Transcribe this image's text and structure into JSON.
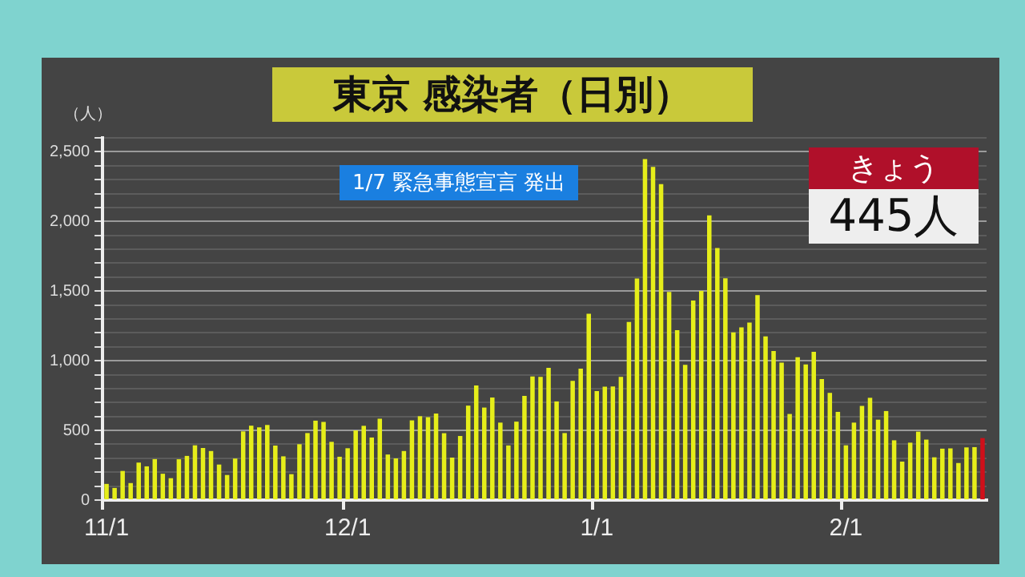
{
  "chart_data": {
    "type": "bar",
    "title": "東京 感染者（日別）",
    "ylabel": "（人）",
    "categories": [
      "11/1",
      null,
      null,
      null,
      null,
      null,
      null,
      null,
      null,
      null,
      null,
      null,
      null,
      null,
      null,
      null,
      null,
      null,
      null,
      null,
      null,
      null,
      null,
      null,
      null,
      null,
      null,
      null,
      null,
      null,
      "12/1",
      null,
      null,
      null,
      null,
      null,
      null,
      null,
      null,
      null,
      null,
      null,
      null,
      null,
      null,
      null,
      null,
      null,
      null,
      null,
      null,
      null,
      null,
      null,
      null,
      null,
      null,
      null,
      null,
      null,
      null,
      "1/1",
      null,
      null,
      null,
      null,
      null,
      null,
      null,
      null,
      null,
      null,
      null,
      null,
      null,
      null,
      null,
      null,
      null,
      null,
      null,
      null,
      null,
      null,
      null,
      null,
      null,
      null,
      null,
      null,
      null,
      null,
      "2/1",
      null,
      null,
      null,
      null,
      null,
      null,
      null,
      null,
      null,
      null,
      null,
      null,
      null,
      null,
      null,
      null,
      null
    ],
    "values": [
      116,
      87,
      209,
      122,
      269,
      242,
      294,
      189,
      157,
      293,
      317,
      393,
      374,
      352,
      255,
      180,
      298,
      493,
      534,
      522,
      539,
      391,
      314,
      186,
      401,
      481,
      570,
      561,
      418,
      311,
      372,
      500,
      533,
      449,
      584,
      327,
      299,
      352,
      572,
      602,
      595,
      621,
      480,
      305,
      460,
      678,
      822,
      664,
      736,
      556,
      392,
      563,
      748,
      888,
      884,
      949,
      708,
      481,
      856,
      944,
      1337,
      783,
      814,
      816,
      884,
      1278,
      1591,
      2447,
      2392,
      2268,
      1494,
      1219,
      970,
      1433,
      1502,
      2044,
      1809,
      1592,
      1204,
      1240,
      1274,
      1471,
      1175,
      1070,
      986,
      618,
      1026,
      973,
      1064,
      868,
      769,
      633,
      393,
      556,
      676,
      734,
      577,
      639,
      429,
      276,
      412,
      491,
      434,
      307,
      369,
      371,
      266,
      378,
      380,
      445
    ],
    "colors": [
      "#e6ee1a",
      "#e6ee1a",
      "#e6ee1a",
      "#e6ee1a",
      "#e6ee1a",
      "#e6ee1a",
      "#e6ee1a",
      "#e6ee1a",
      "#e6ee1a",
      "#e6ee1a",
      "#e6ee1a",
      "#e6ee1a",
      "#e6ee1a",
      "#e6ee1a",
      "#e6ee1a",
      "#e6ee1a",
      "#e6ee1a",
      "#e6ee1a",
      "#e6ee1a",
      "#e6ee1a",
      "#e6ee1a",
      "#e6ee1a",
      "#e6ee1a",
      "#e6ee1a",
      "#e6ee1a",
      "#e6ee1a",
      "#e6ee1a",
      "#e6ee1a",
      "#e6ee1a",
      "#e6ee1a",
      "#e6ee1a",
      "#e6ee1a",
      "#e6ee1a",
      "#e6ee1a",
      "#e6ee1a",
      "#e6ee1a",
      "#e6ee1a",
      "#e6ee1a",
      "#e6ee1a",
      "#e6ee1a",
      "#e6ee1a",
      "#e6ee1a",
      "#e6ee1a",
      "#e6ee1a",
      "#e6ee1a",
      "#e6ee1a",
      "#e6ee1a",
      "#e6ee1a",
      "#e6ee1a",
      "#e6ee1a",
      "#e6ee1a",
      "#e6ee1a",
      "#e6ee1a",
      "#e6ee1a",
      "#e6ee1a",
      "#e6ee1a",
      "#e6ee1a",
      "#e6ee1a",
      "#e6ee1a",
      "#e6ee1a",
      "#e6ee1a",
      "#e6ee1a",
      "#e6ee1a",
      "#e6ee1a",
      "#e6ee1a",
      "#e6ee1a",
      "#e6ee1a",
      "#e6ee1a",
      "#e6ee1a",
      "#e6ee1a",
      "#e6ee1a",
      "#e6ee1a",
      "#e6ee1a",
      "#e6ee1a",
      "#e6ee1a",
      "#e6ee1a",
      "#e6ee1a",
      "#e6ee1a",
      "#e6ee1a",
      "#e6ee1a",
      "#e6ee1a",
      "#e6ee1a",
      "#e6ee1a",
      "#e6ee1a",
      "#e6ee1a",
      "#e6ee1a",
      "#e6ee1a",
      "#e6ee1a",
      "#e6ee1a",
      "#e6ee1a",
      "#e6ee1a",
      "#e6ee1a",
      "#e6ee1a",
      "#e6ee1a",
      "#e6ee1a",
      "#e6ee1a",
      "#e6ee1a",
      "#e6ee1a",
      "#e6ee1a",
      "#e6ee1a",
      "#e6ee1a",
      "#e6ee1a",
      "#e6ee1a",
      "#e6ee1a",
      "#e6ee1a",
      "#e6ee1a",
      "#e6ee1a",
      "#e6ee1a",
      "#e6ee1a",
      "#d0101a"
    ],
    "ylim": [
      0,
      2600
    ],
    "yticks": [
      0,
      {
        "value": 100,
        "label": null
      },
      {
        "value": 200,
        "label": null
      },
      {
        "value": 300,
        "label": null
      },
      {
        "value": 400,
        "label": null
      },
      500,
      {
        "value": 600,
        "label": null
      },
      {
        "value": 700,
        "label": null
      },
      {
        "value": 800,
        "label": null
      },
      {
        "value": 900,
        "label": null
      },
      {
        "value": 1000,
        "label": "1,000"
      },
      {
        "value": 1100,
        "label": null
      },
      {
        "value": 1200,
        "label": null
      },
      {
        "value": 1300,
        "label": null
      },
      {
        "value": 1400,
        "label": null
      },
      {
        "value": 1500,
        "label": "1,500"
      },
      {
        "value": 1600,
        "label": null
      },
      {
        "value": 1700,
        "label": null
      },
      {
        "value": 1800,
        "label": null
      },
      {
        "value": 1900,
        "label": null
      },
      {
        "value": 2000,
        "label": "2,000"
      },
      {
        "value": 2100,
        "label": null
      },
      {
        "value": 2200,
        "label": null
      },
      {
        "value": 2300,
        "label": null
      },
      {
        "value": 2400,
        "label": null
      },
      {
        "value": 2500,
        "label": "2,500"
      },
      {
        "value": 2600,
        "label": null
      }
    ],
    "grid": "y",
    "annotations": [
      "1/7 緊急事態宣言 発出",
      "きょう",
      "445人"
    ]
  }
}
